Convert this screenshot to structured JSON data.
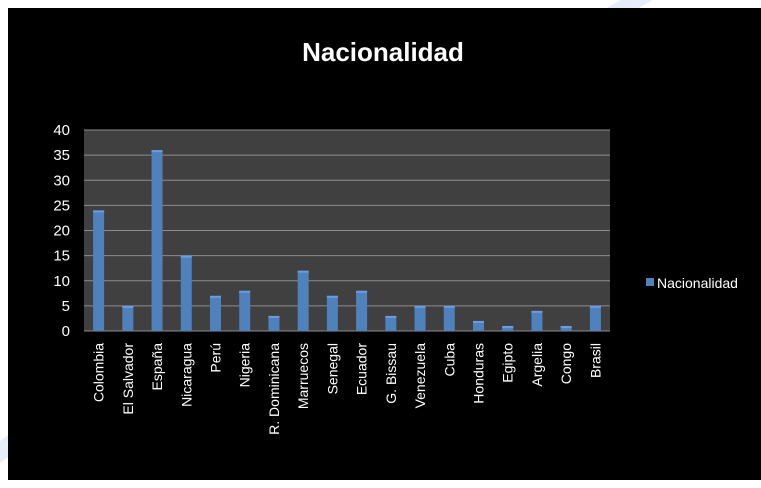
{
  "colors": {
    "background": "#000000",
    "plot_area": "#404040",
    "gridline": "#8c8c8c",
    "bar": "#4f81bd",
    "bar_highlight": "#6b9be0",
    "text": "#ffffff"
  },
  "chart_data": {
    "type": "bar",
    "title": "Nacionalidad",
    "categories": [
      "Colombia",
      "El Salvador",
      "España",
      "Nicaragua",
      "Perú",
      "Nigeria",
      "R. Dominicana",
      "Marruecos",
      "Senegal",
      "Ecuador",
      "G. Bissau",
      "Venezuela",
      "Cuba",
      "Honduras",
      "Egipto",
      "Argelia",
      "Congo",
      "Brasil"
    ],
    "series": [
      {
        "name": "Nacionalidad",
        "values": [
          24,
          5,
          36,
          15,
          7,
          8,
          3,
          12,
          7,
          8,
          3,
          5,
          5,
          2,
          1,
          4,
          1,
          5
        ]
      }
    ],
    "ylim": [
      0,
      40
    ],
    "yticks": [
      0,
      5,
      10,
      15,
      20,
      25,
      30,
      35,
      40
    ],
    "grid": true,
    "legend_position": "right",
    "xlabel": "",
    "ylabel": ""
  }
}
